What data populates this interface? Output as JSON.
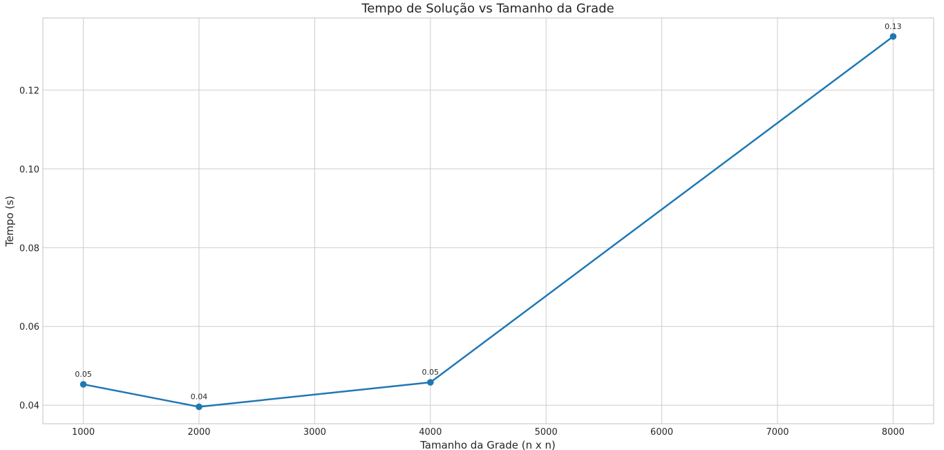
{
  "chart_data": {
    "type": "line",
    "title": "Tempo de Solução vs Tamanho da Grade",
    "xlabel": "Tamanho da Grade (n x n)",
    "ylabel": "Tempo (s)",
    "xlim": [
      650,
      8350
    ],
    "ylim": [
      0.0353,
      0.1383
    ],
    "x_ticks": [
      1000,
      2000,
      3000,
      4000,
      5000,
      6000,
      7000,
      8000
    ],
    "x_tick_labels": [
      "1000",
      "2000",
      "3000",
      "4000",
      "5000",
      "6000",
      "7000",
      "8000"
    ],
    "y_ticks": [
      0.04,
      0.06,
      0.08,
      0.1,
      0.12
    ],
    "y_tick_labels": [
      "0.04",
      "0.06",
      "0.08",
      "0.10",
      "0.12"
    ],
    "grid": true,
    "series": [
      {
        "color": "#1f77b4",
        "marker": "circle",
        "x": [
          1000,
          2000,
          4000,
          8000
        ],
        "y": [
          0.0453,
          0.0396,
          0.0458,
          0.1336
        ],
        "labels": [
          "0.05",
          "0.04",
          "0.05",
          "0.13"
        ]
      }
    ]
  }
}
